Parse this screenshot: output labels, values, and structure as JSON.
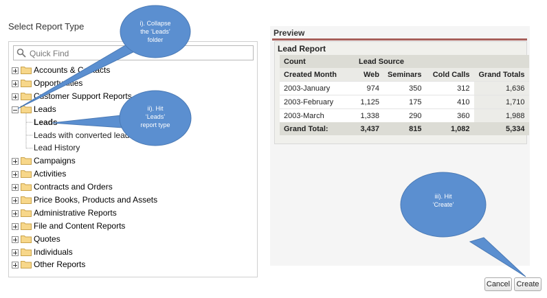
{
  "page_title": "Select Report Type",
  "search": {
    "placeholder": "Quick Find"
  },
  "tree": [
    {
      "label": "Accounts & Contacts",
      "state": "collapsed"
    },
    {
      "label": "Opportunities",
      "state": "collapsed"
    },
    {
      "label": "Customer Support Reports",
      "state": "collapsed"
    },
    {
      "label": "Leads",
      "state": "expanded",
      "children": [
        {
          "label": "Leads",
          "selected": true
        },
        {
          "label": "Leads with converted lead information",
          "selected": false
        },
        {
          "label": "Lead History",
          "selected": false
        }
      ]
    },
    {
      "label": "Campaigns",
      "state": "collapsed"
    },
    {
      "label": "Activities",
      "state": "collapsed"
    },
    {
      "label": "Contracts and Orders",
      "state": "collapsed"
    },
    {
      "label": "Price Books, Products and Assets",
      "state": "collapsed"
    },
    {
      "label": "Administrative Reports",
      "state": "collapsed"
    },
    {
      "label": "File and Content Reports",
      "state": "collapsed"
    },
    {
      "label": "Quotes",
      "state": "collapsed"
    },
    {
      "label": "Individuals",
      "state": "collapsed"
    },
    {
      "label": "Other Reports",
      "state": "collapsed"
    }
  ],
  "preview": {
    "label": "Preview",
    "report_title": "Lead Report",
    "header_row1": [
      "Count",
      "Lead Source"
    ],
    "header_row2": [
      "Created Month",
      "Web",
      "Seminars",
      "Cold Calls",
      "Grand Totals"
    ],
    "rows": [
      [
        "2003-January",
        "974",
        "350",
        "312",
        "1,636"
      ],
      [
        "2003-February",
        "1,125",
        "175",
        "410",
        "1,710"
      ],
      [
        "2003-March",
        "1,338",
        "290",
        "360",
        "1,988"
      ]
    ],
    "total_row": [
      "Grand Total:",
      "3,437",
      "815",
      "1,082",
      "5,334"
    ]
  },
  "buttons": {
    "cancel": "Cancel",
    "create": "Create"
  },
  "callouts": {
    "collapse": [
      "i). Collapse",
      "the ‘Leads’",
      "folder"
    ],
    "hit_leads": [
      "ii). Hit",
      "‘Leads’",
      "report type"
    ],
    "create": [
      "iii). Hit",
      "‘Create’"
    ]
  },
  "colors": {
    "callout": "#5b8fd0",
    "preview_accent": "#a75f5a"
  }
}
